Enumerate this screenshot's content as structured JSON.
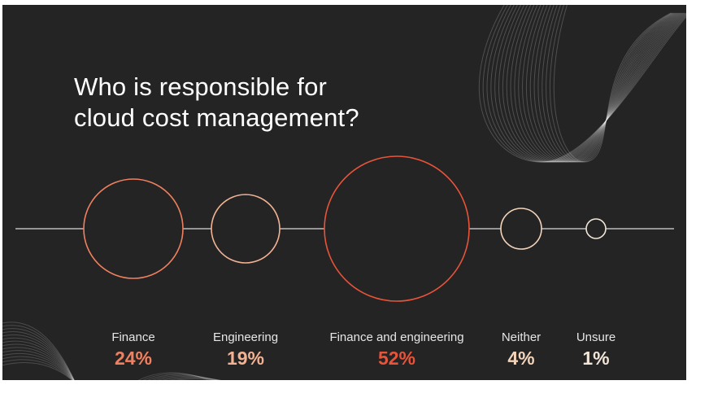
{
  "title": {
    "line1": "Who is responsible for",
    "line2": "cloud cost management?"
  },
  "chart_data": {
    "type": "bubble",
    "title": "Who is responsible for cloud cost management?",
    "categories": [
      "Finance",
      "Engineering",
      "Finance and engineering",
      "Neither",
      "Unsure"
    ],
    "values": [
      24,
      19,
      52,
      4,
      1
    ],
    "labels": [
      "24%",
      "19%",
      "52%",
      "4%",
      "1%"
    ],
    "unit": "%",
    "colors": [
      "#f0805f",
      "#f2b394",
      "#e8543a",
      "#f3d4bb",
      "#f1e6d8"
    ]
  }
}
